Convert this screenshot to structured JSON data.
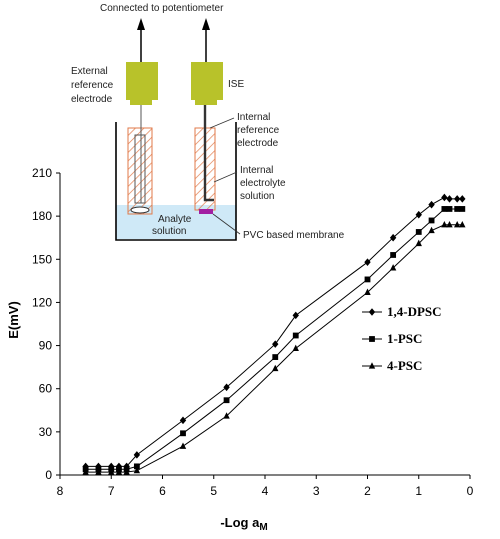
{
  "chart_data": {
    "type": "line",
    "xlabel_main": "-Log a",
    "xlabel_sub": "M",
    "ylabel": "E(mV)",
    "xlim": [
      8,
      0
    ],
    "ylim": [
      0,
      210
    ],
    "x_ticks": [
      8,
      7,
      6,
      5,
      4,
      3,
      2,
      1,
      0
    ],
    "y_ticks": [
      0,
      30,
      60,
      90,
      120,
      150,
      180,
      210
    ],
    "legend_position": "right",
    "series": [
      {
        "name": "1,4-DPSC",
        "marker": "diamond",
        "points": [
          [
            7.5,
            6
          ],
          [
            7.25,
            6
          ],
          [
            7,
            6
          ],
          [
            6.85,
            6
          ],
          [
            6.7,
            6
          ],
          [
            6.5,
            14
          ],
          [
            5.6,
            38
          ],
          [
            4.75,
            61
          ],
          [
            3.8,
            91
          ],
          [
            3.4,
            111
          ],
          [
            2,
            148
          ],
          [
            1.5,
            165
          ],
          [
            1,
            181
          ],
          [
            0.75,
            188
          ],
          [
            0.5,
            193
          ],
          [
            0.4,
            192
          ],
          [
            0.25,
            192
          ],
          [
            0.15,
            192
          ]
        ]
      },
      {
        "name": "1-PSC",
        "marker": "square",
        "points": [
          [
            7.5,
            4
          ],
          [
            7.25,
            4
          ],
          [
            7,
            4
          ],
          [
            6.85,
            4
          ],
          [
            6.7,
            4
          ],
          [
            6.5,
            6
          ],
          [
            5.6,
            29
          ],
          [
            4.75,
            52
          ],
          [
            3.8,
            82
          ],
          [
            3.4,
            97
          ],
          [
            2,
            136
          ],
          [
            1.5,
            153
          ],
          [
            1,
            169
          ],
          [
            0.75,
            177
          ],
          [
            0.5,
            185
          ],
          [
            0.4,
            185
          ],
          [
            0.25,
            185
          ],
          [
            0.15,
            185
          ]
        ]
      },
      {
        "name": "4-PSC",
        "marker": "triangle",
        "points": [
          [
            7.5,
            2
          ],
          [
            7.25,
            2
          ],
          [
            7,
            2
          ],
          [
            6.85,
            2
          ],
          [
            6.7,
            2
          ],
          [
            6.5,
            3
          ],
          [
            5.6,
            20
          ],
          [
            4.75,
            41
          ],
          [
            3.8,
            74
          ],
          [
            3.4,
            88
          ],
          [
            2,
            127
          ],
          [
            1.5,
            144
          ],
          [
            1,
            161
          ],
          [
            0.75,
            170
          ],
          [
            0.5,
            174
          ],
          [
            0.4,
            174
          ],
          [
            0.25,
            174
          ],
          [
            0.15,
            174
          ]
        ]
      }
    ]
  },
  "diagram": {
    "top_label": "Connected to potentiometer",
    "ext_ref": [
      "External",
      "reference",
      "electrode"
    ],
    "ise": "ISE",
    "int_ref": [
      "Internal",
      "reference",
      "electrode"
    ],
    "int_elec": [
      "Internal",
      "electrolyte",
      "solution"
    ],
    "analyte": [
      "Analyte",
      "solution"
    ],
    "membrane": "PVC based membrane",
    "colors": {
      "cap": "#b8c22a",
      "solution": "#cfe9f7",
      "hatch": "#e07a4a",
      "membrane": "#a21fa2"
    }
  }
}
